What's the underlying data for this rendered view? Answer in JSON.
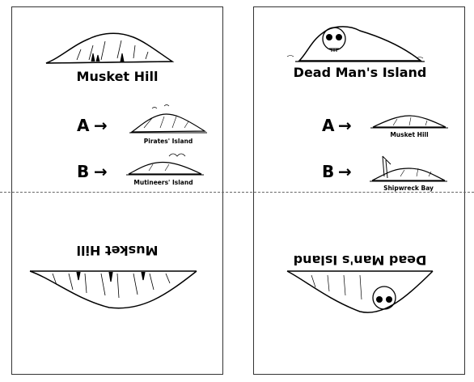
{
  "left_card": {
    "title": "Musket Hill",
    "title_flipped": "Musket Hill",
    "option_a": {
      "letter": "A",
      "arrow": "→",
      "caption": "Pirates' Island"
    },
    "option_b": {
      "letter": "B",
      "arrow": "→",
      "caption": "Mutineers' Island"
    }
  },
  "right_card": {
    "title": "Dead Man's Island",
    "title_flipped": "Dead Man's Island",
    "option_a": {
      "letter": "A",
      "arrow": "→",
      "caption": "Musket Hill"
    },
    "option_b": {
      "letter": "B",
      "arrow": "→",
      "caption": "Shipwreck Bay"
    }
  }
}
